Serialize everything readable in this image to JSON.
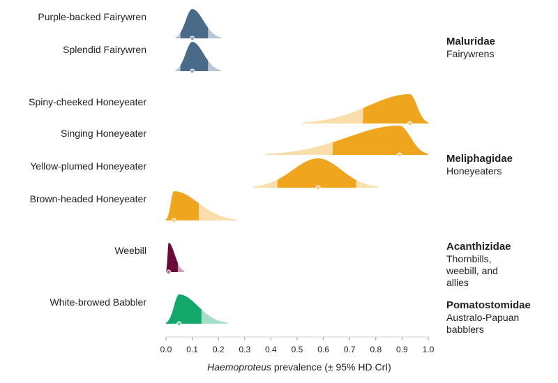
{
  "chart_data": {
    "type": "density-ridgeline",
    "xlabel_italic": "Haemoproteus",
    "xlabel_rest": " prevalence (± 95% HD CrI)",
    "xlim": [
      0,
      1
    ],
    "xticks": [
      "0.0",
      "0.1",
      "0.2",
      "0.3",
      "0.4",
      "0.5",
      "0.6",
      "0.7",
      "0.8",
      "0.9",
      "1.0"
    ],
    "families": [
      {
        "name": "Maluridae",
        "desc": [
          "Fairywrens"
        ],
        "color": "#4a6a8a"
      },
      {
        "name": "Meliphagidae",
        "desc": [
          "Honeyeaters"
        ],
        "color": "#f0a51e"
      },
      {
        "name": "Acanthizidae",
        "desc": [
          "Thornbills,",
          "weebill, and",
          "allies"
        ],
        "color": "#6b0a3a"
      },
      {
        "name": "Pomatostomidae",
        "desc": [
          "Australo-Papuan",
          "babblers"
        ],
        "color": "#12a86b"
      }
    ],
    "series": [
      {
        "label": "Purple-backed Fairywren",
        "family": 0,
        "estimate": 0.1,
        "hdi": [
          0.055,
          0.16
        ],
        "range": [
          0.035,
          0.21
        ]
      },
      {
        "label": "Splendid Fairywren",
        "family": 0,
        "estimate": 0.1,
        "hdi": [
          0.055,
          0.16
        ],
        "range": [
          0.035,
          0.21
        ]
      },
      {
        "label": "Spiny-cheeked Honeyeater",
        "family": 1,
        "estimate": 0.93,
        "hdi": [
          0.75,
          1.0
        ],
        "range": [
          0.52,
          1.0
        ]
      },
      {
        "label": "Singing Honeyeater",
        "family": 1,
        "estimate": 0.89,
        "hdi": [
          0.635,
          1.0
        ],
        "range": [
          0.38,
          1.0
        ]
      },
      {
        "label": "Yellow-plumed Honeyeater",
        "family": 1,
        "estimate": 0.58,
        "hdi": [
          0.425,
          0.725
        ],
        "range": [
          0.33,
          0.81
        ]
      },
      {
        "label": "Brown-headed Honeyeater",
        "family": 1,
        "estimate": 0.03,
        "hdi": [
          0.0,
          0.125
        ],
        "range": [
          0.0,
          0.27
        ]
      },
      {
        "label": "Weebill",
        "family": 2,
        "estimate": 0.01,
        "hdi": [
          0.0,
          0.045
        ],
        "range": [
          0.0,
          0.07
        ]
      },
      {
        "label": "White-browed Babbler",
        "family": 3,
        "estimate": 0.05,
        "hdi": [
          0.0,
          0.135
        ],
        "range": [
          0.0,
          0.235
        ]
      }
    ]
  }
}
